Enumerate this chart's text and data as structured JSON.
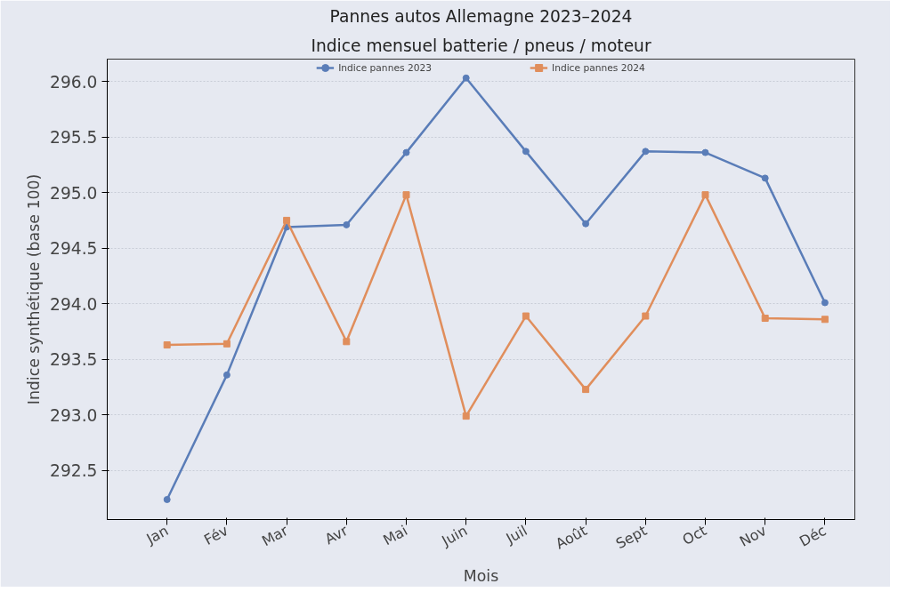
{
  "chart_data": {
    "type": "line",
    "title": "Pannes autos Allemagne 2023–2024",
    "subtitle": "Indice mensuel batterie / pneus / moteur",
    "xlabel": "Mois",
    "ylabel": "Indice synthétique (base 100)",
    "categories": [
      "Jan",
      "Fév",
      "Mar",
      "Avr",
      "Mai",
      "Juin",
      "Juil",
      "Août",
      "Sept",
      "Oct",
      "Nov",
      "Déc"
    ],
    "series": [
      {
        "name": "Indice pannes 2023",
        "color": "#5a7db8",
        "marker": "circle",
        "values": [
          292.24,
          293.36,
          294.69,
          294.71,
          295.36,
          296.03,
          295.37,
          294.72,
          295.37,
          295.36,
          295.13,
          294.01
        ]
      },
      {
        "name": "Indice pannes 2024",
        "color": "#e08e5c",
        "marker": "square",
        "values": [
          293.63,
          293.64,
          294.75,
          293.66,
          294.98,
          292.99,
          293.89,
          293.23,
          293.89,
          294.98,
          293.87,
          293.86
        ]
      }
    ],
    "ylim": [
      292.06,
      296.2
    ],
    "yticks": [
      292.5,
      {
        "value": 293,
        "label": "293.0"
      },
      293.5,
      {
        "value": 294,
        "label": "294.0"
      },
      294.5,
      {
        "value": 295,
        "label": "295.0"
      },
      295.5,
      {
        "value": 296,
        "label": "296.0"
      }
    ],
    "grid": "y",
    "legend": "top",
    "line_style": "solid"
  }
}
